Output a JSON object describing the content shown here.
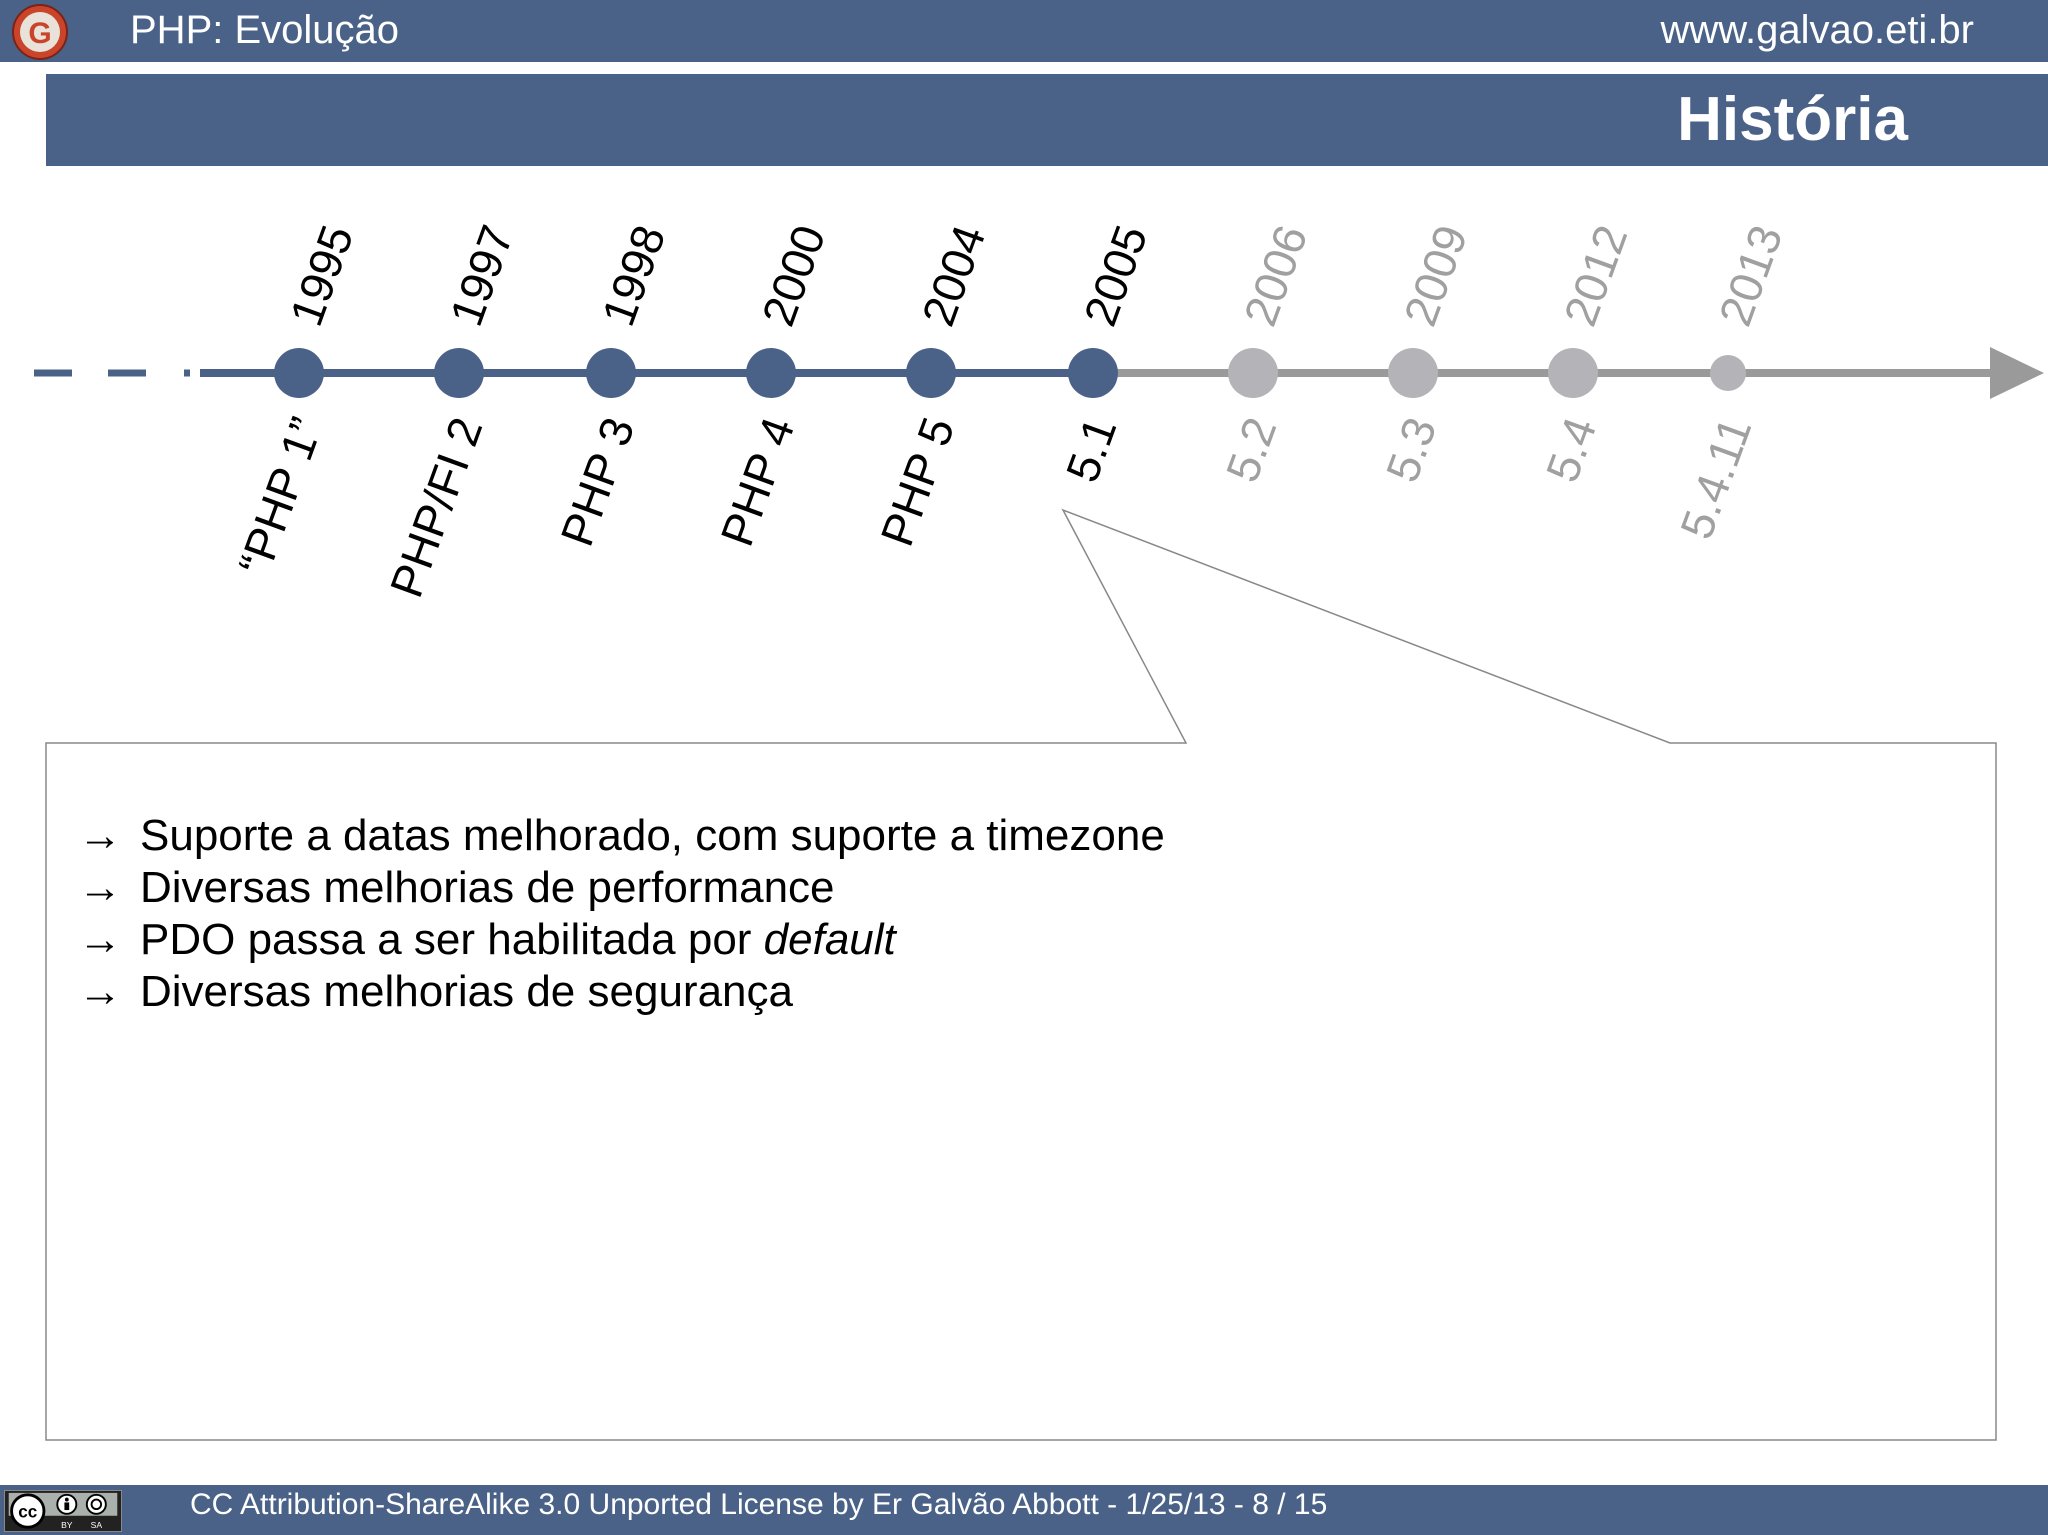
{
  "header": {
    "title": "PHP: Evolução",
    "url": "www.galvao.eti.br",
    "logo_letter": "G"
  },
  "section": {
    "title": "História"
  },
  "timeline": {
    "events": [
      {
        "year": "1995",
        "version": "“PHP 1”",
        "status": "past"
      },
      {
        "year": "1997",
        "version": "PHP/FI 2",
        "status": "past"
      },
      {
        "year": "1998",
        "version": "PHP 3",
        "status": "past"
      },
      {
        "year": "2000",
        "version": "PHP 4",
        "status": "past"
      },
      {
        "year": "2004",
        "version": "PHP 5",
        "status": "past"
      },
      {
        "year": "2005",
        "version": "5.1",
        "status": "current"
      },
      {
        "year": "2006",
        "version": "5.2",
        "status": "future"
      },
      {
        "year": "2009",
        "version": "5.3",
        "status": "future"
      },
      {
        "year": "2012",
        "version": "5.4",
        "status": "future"
      },
      {
        "year": "2013",
        "version": "5.4.11",
        "status": "future"
      }
    ],
    "colors": {
      "past": "#4a6288",
      "future": "#b4b4b8",
      "future_text": "#a0a0a0",
      "line_future": "#9a9a9a"
    }
  },
  "notes": {
    "arrow": "→",
    "items": [
      {
        "text": "Suporte a datas melhorado, com suporte a timezone"
      },
      {
        "text": "Diversas melhorias de performance"
      },
      {
        "text": "PDO passa a ser habilitada por ",
        "emphasis": "default"
      },
      {
        "text": "Diversas melhorias de segurança"
      }
    ]
  },
  "footer": {
    "license_text": "CC Attribution-ShareAlike 3.0 Unported License by Er Galvão Abbott - 1/25/13 - 8 / 15",
    "badge": {
      "cc": "cc",
      "by": "BY",
      "sa": "SA"
    }
  }
}
